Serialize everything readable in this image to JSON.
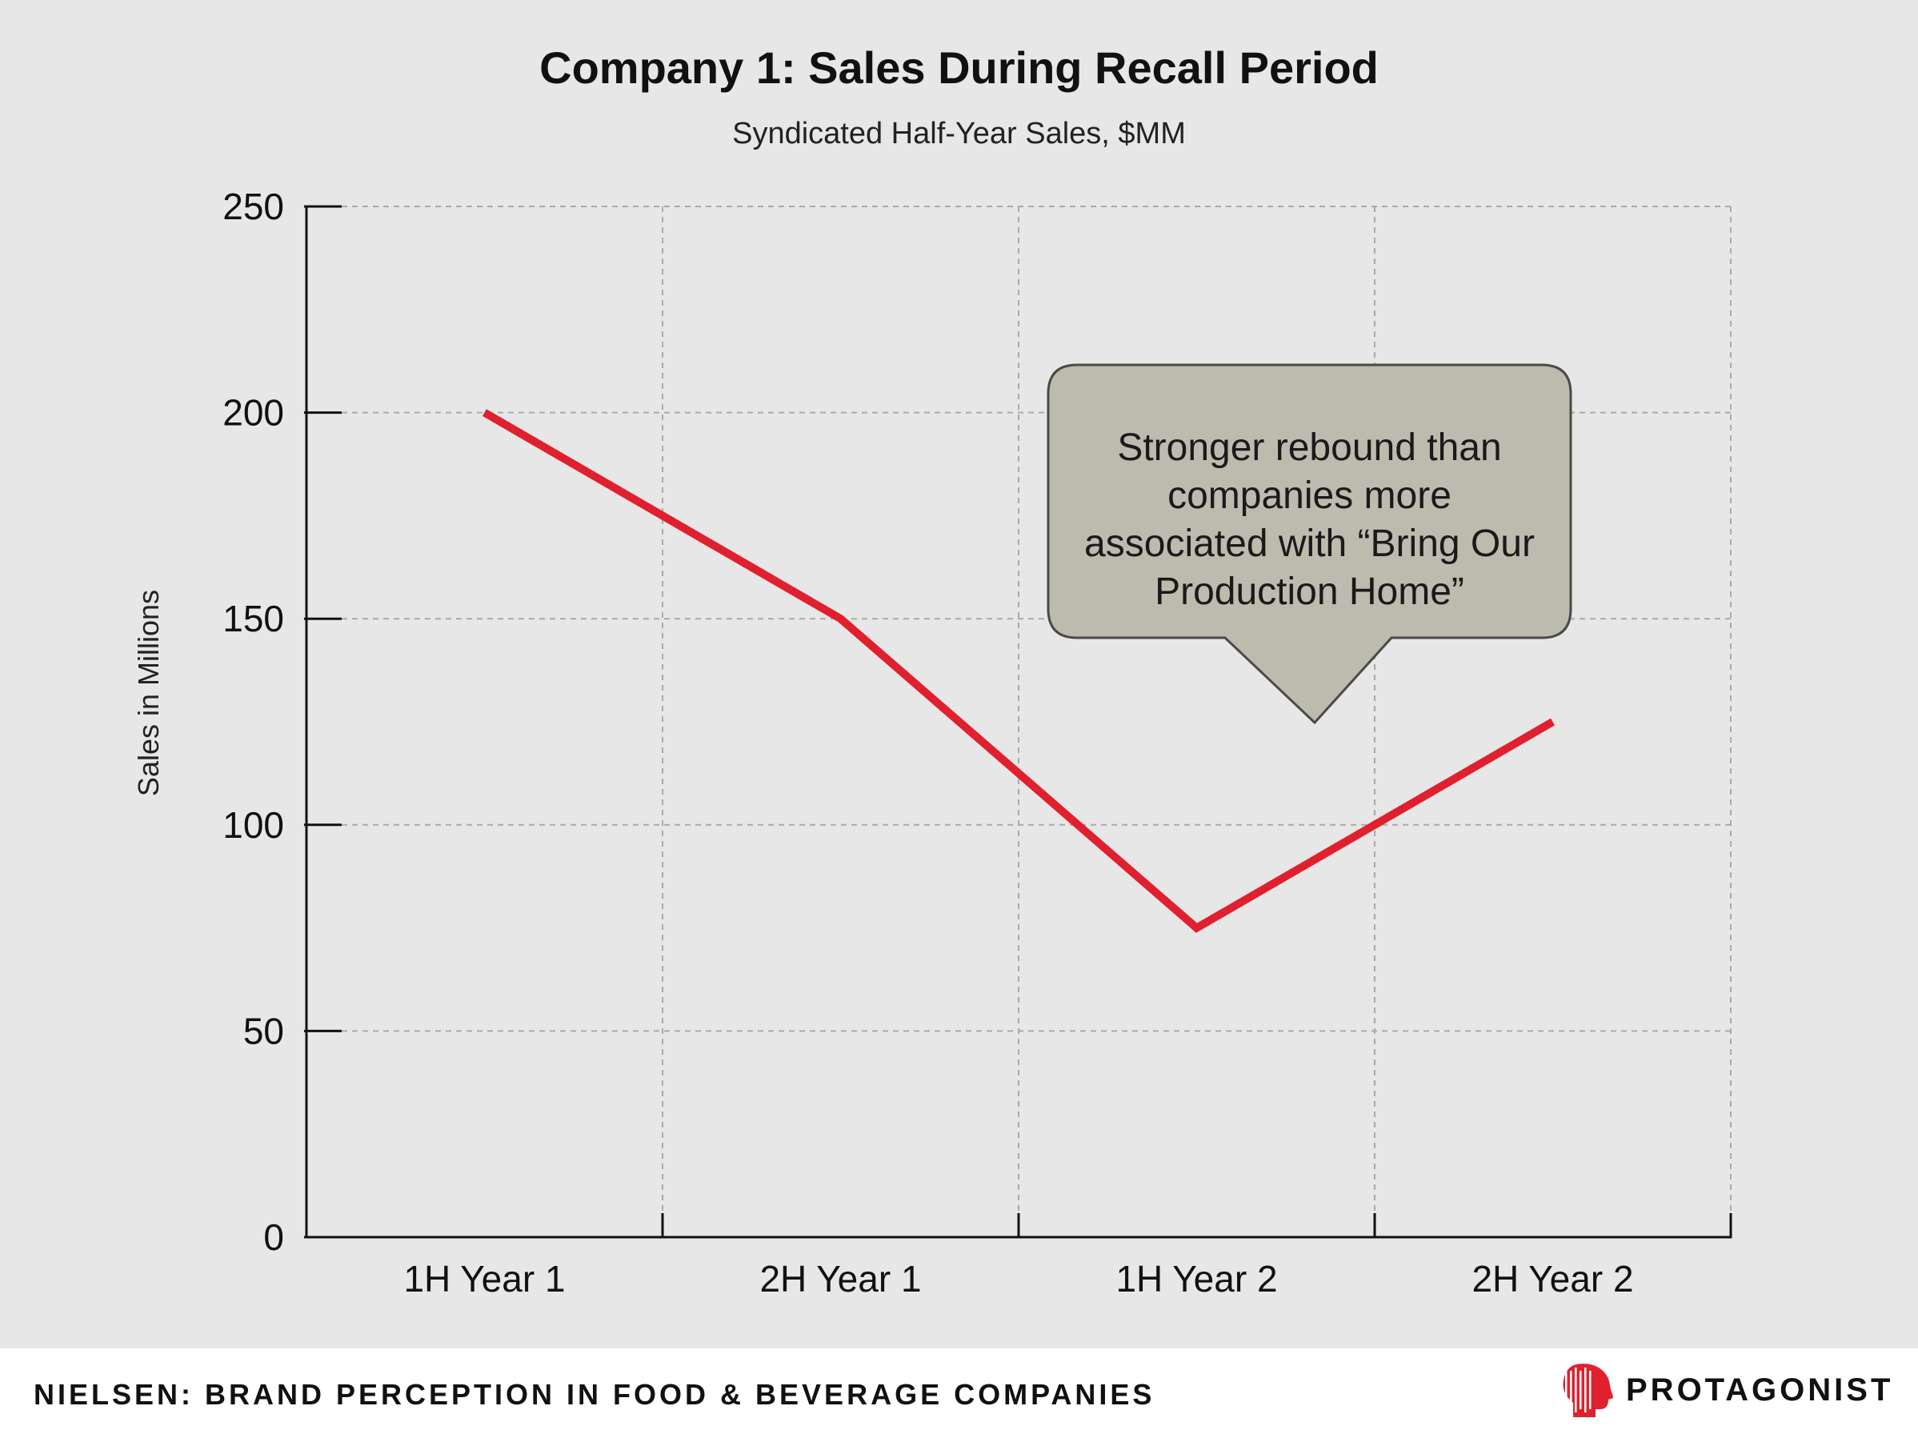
{
  "chart_data": {
    "type": "line",
    "title": "Company 1: Sales During Recall Period",
    "subtitle": "Syndicated Half-Year Sales, $MM",
    "xlabel": "",
    "ylabel": "Sales in Millions",
    "categories": [
      "1H Year 1",
      "2H Year 1",
      "1H Year 2",
      "2H Year 2"
    ],
    "series": [
      {
        "values": [
          200,
          150,
          75,
          125
        ],
        "color": "#e0202e"
      }
    ],
    "ylim": [
      0,
      250
    ],
    "yticks": [
      0,
      50,
      100,
      150,
      200,
      250
    ],
    "grid": true,
    "annotation": {
      "text": "Stronger rebound than companies more associated with “Bring Our Production Home”",
      "color": "#bcbbae"
    }
  },
  "footer": {
    "source": "NIELSEN: BRAND PERCEPTION IN FOOD & BEVERAGE COMPANIES"
  },
  "brand": {
    "name": "PROTAGONIST",
    "accent": "#e0202e"
  }
}
